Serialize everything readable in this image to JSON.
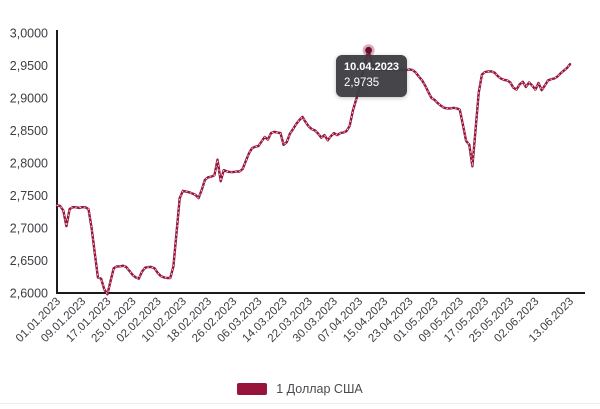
{
  "chart": {
    "tooltip": {
      "date": "10.04.2023",
      "value": "2,9735"
    },
    "legend": {
      "label": "1 Доллар США"
    },
    "colors": {
      "line": "#97143a",
      "line_dot_overlay": "#ffffff",
      "axis": "#1b1b1b",
      "tick_text": "#3d3d44",
      "tooltip_bg": "#3b3b40",
      "tooltip_text": "#ffffff",
      "marker_core": "#66102a",
      "marker_halo": "rgba(151,20,58,0.35)"
    }
  },
  "chart_data": {
    "type": "line",
    "title": "",
    "xlabel": "",
    "ylabel": "",
    "grid": false,
    "legend_position": "bottom",
    "ylim": [
      2.6,
      3.0
    ],
    "x_range_days": [
      0,
      163
    ],
    "y_ticks": [
      {
        "label": "3,0000",
        "value": 3.0
      },
      {
        "label": "2,9500",
        "value": 2.95
      },
      {
        "label": "2,9000",
        "value": 2.9
      },
      {
        "label": "2,8500",
        "value": 2.85
      },
      {
        "label": "2,8000",
        "value": 2.8
      },
      {
        "label": "2,7500",
        "value": 2.75
      },
      {
        "label": "2,7000",
        "value": 2.7
      },
      {
        "label": "2,6500",
        "value": 2.65
      },
      {
        "label": "2,6000",
        "value": 2.6
      }
    ],
    "x_ticks": [
      {
        "label": "01.01.2023",
        "day": 0
      },
      {
        "label": "09.01.2023",
        "day": 8
      },
      {
        "label": "17.01.2023",
        "day": 16
      },
      {
        "label": "25.01.2023",
        "day": 24
      },
      {
        "label": "02.02.2023",
        "day": 32
      },
      {
        "label": "10.02.2023",
        "day": 40
      },
      {
        "label": "18.02.2023",
        "day": 48
      },
      {
        "label": "26.02.2023",
        "day": 56
      },
      {
        "label": "06.03.2023",
        "day": 64
      },
      {
        "label": "14.03.2023",
        "day": 72
      },
      {
        "label": "22.03.2023",
        "day": 80
      },
      {
        "label": "30.03.2023",
        "day": 88
      },
      {
        "label": "07.04.2023",
        "day": 96
      },
      {
        "label": "15.04.2023",
        "day": 104
      },
      {
        "label": "23.04.2023",
        "day": 112
      },
      {
        "label": "01.05.2023",
        "day": 120
      },
      {
        "label": "09.05.2023",
        "day": 128
      },
      {
        "label": "17.05.2023",
        "day": 136
      },
      {
        "label": "25.05.2023",
        "day": 144
      },
      {
        "label": "02.06.2023",
        "day": 152
      },
      {
        "label": "13.06.2023",
        "day": 163
      }
    ],
    "marker": {
      "day": 99,
      "value": 2.9735,
      "date": "10.04.2023",
      "display_value": "2,9735"
    },
    "series": [
      {
        "name": "1 Доллар США",
        "points": [
          [
            0,
            2.735
          ],
          [
            1,
            2.734
          ],
          [
            2,
            2.727
          ],
          [
            3,
            2.703
          ],
          [
            4,
            2.729
          ],
          [
            5,
            2.732
          ],
          [
            6,
            2.732
          ],
          [
            7,
            2.731
          ],
          [
            8,
            2.732
          ],
          [
            9,
            2.732
          ],
          [
            10,
            2.729
          ],
          [
            11,
            2.7
          ],
          [
            12,
            2.661
          ],
          [
            13,
            2.624
          ],
          [
            14,
            2.622
          ],
          [
            15,
            2.606
          ],
          [
            16,
            2.598
          ],
          [
            17,
            2.618
          ],
          [
            18,
            2.638
          ],
          [
            19,
            2.641
          ],
          [
            20,
            2.641
          ],
          [
            21,
            2.642
          ],
          [
            22,
            2.64
          ],
          [
            23,
            2.634
          ],
          [
            24,
            2.628
          ],
          [
            25,
            2.624
          ],
          [
            26,
            2.622
          ],
          [
            27,
            2.633
          ],
          [
            28,
            2.639
          ],
          [
            29,
            2.64
          ],
          [
            30,
            2.64
          ],
          [
            31,
            2.638
          ],
          [
            32,
            2.631
          ],
          [
            33,
            2.626
          ],
          [
            34,
            2.624
          ],
          [
            35,
            2.623
          ],
          [
            36,
            2.623
          ],
          [
            37,
            2.641
          ],
          [
            38,
            2.694
          ],
          [
            39,
            2.746
          ],
          [
            40,
            2.757
          ],
          [
            41,
            2.756
          ],
          [
            42,
            2.755
          ],
          [
            43,
            2.753
          ],
          [
            44,
            2.751
          ],
          [
            45,
            2.746
          ],
          [
            46,
            2.759
          ],
          [
            47,
            2.774
          ],
          [
            48,
            2.778
          ],
          [
            49,
            2.779
          ],
          [
            50,
            2.781
          ],
          [
            51,
            2.805
          ],
          [
            52,
            2.772
          ],
          [
            53,
            2.789
          ],
          [
            54,
            2.787
          ],
          [
            55,
            2.786
          ],
          [
            56,
            2.786
          ],
          [
            57,
            2.787
          ],
          [
            58,
            2.787
          ],
          [
            59,
            2.791
          ],
          [
            60,
            2.803
          ],
          [
            61,
            2.815
          ],
          [
            62,
            2.823
          ],
          [
            63,
            2.825
          ],
          [
            64,
            2.826
          ],
          [
            65,
            2.833
          ],
          [
            66,
            2.84
          ],
          [
            67,
            2.836
          ],
          [
            68,
            2.846
          ],
          [
            69,
            2.848
          ],
          [
            70,
            2.847
          ],
          [
            71,
            2.846
          ],
          [
            72,
            2.828
          ],
          [
            73,
            2.832
          ],
          [
            74,
            2.845
          ],
          [
            75,
            2.852
          ],
          [
            76,
            2.86
          ],
          [
            77,
            2.866
          ],
          [
            78,
            2.871
          ],
          [
            79,
            2.863
          ],
          [
            80,
            2.856
          ],
          [
            81,
            2.852
          ],
          [
            82,
            2.85
          ],
          [
            83,
            2.845
          ],
          [
            84,
            2.839
          ],
          [
            85,
            2.843
          ],
          [
            86,
            2.835
          ],
          [
            87,
            2.841
          ],
          [
            88,
            2.846
          ],
          [
            89,
            2.843
          ],
          [
            90,
            2.846
          ],
          [
            91,
            2.847
          ],
          [
            92,
            2.849
          ],
          [
            93,
            2.857
          ],
          [
            94,
            2.88
          ],
          [
            95,
            2.897
          ],
          [
            96,
            2.912
          ],
          [
            97,
            2.937
          ],
          [
            98,
            2.957
          ],
          [
            99,
            2.9735
          ],
          [
            100,
            2.952
          ],
          [
            101,
            2.945
          ],
          [
            102,
            2.943
          ],
          [
            103,
            2.943
          ],
          [
            104,
            2.944
          ],
          [
            105,
            2.943
          ],
          [
            106,
            2.944
          ],
          [
            107,
            2.943
          ],
          [
            108,
            2.943
          ],
          [
            109,
            2.944
          ],
          [
            110,
            2.943
          ],
          [
            111,
            2.943
          ],
          [
            112,
            2.944
          ],
          [
            113,
            2.943
          ],
          [
            114,
            2.939
          ],
          [
            115,
            2.933
          ],
          [
            116,
            2.927
          ],
          [
            117,
            2.919
          ],
          [
            118,
            2.909
          ],
          [
            119,
            2.9
          ],
          [
            120,
            2.897
          ],
          [
            121,
            2.892
          ],
          [
            122,
            2.888
          ],
          [
            123,
            2.885
          ],
          [
            124,
            2.884
          ],
          [
            125,
            2.884
          ],
          [
            126,
            2.885
          ],
          [
            127,
            2.884
          ],
          [
            128,
            2.882
          ],
          [
            129,
            2.858
          ],
          [
            130,
            2.834
          ],
          [
            131,
            2.828
          ],
          [
            132,
            2.795
          ],
          [
            133,
            2.852
          ],
          [
            134,
            2.908
          ],
          [
            135,
            2.936
          ],
          [
            136,
            2.94
          ],
          [
            137,
            2.941
          ],
          [
            138,
            2.941
          ],
          [
            139,
            2.939
          ],
          [
            140,
            2.934
          ],
          [
            141,
            2.93
          ],
          [
            142,
            2.928
          ],
          [
            143,
            2.927
          ],
          [
            144,
            2.924
          ],
          [
            145,
            2.916
          ],
          [
            146,
            2.913
          ],
          [
            147,
            2.921
          ],
          [
            148,
            2.925
          ],
          [
            149,
            2.917
          ],
          [
            150,
            2.924
          ],
          [
            151,
            2.919
          ],
          [
            152,
            2.913
          ],
          [
            153,
            2.923
          ],
          [
            154,
            2.912
          ],
          [
            155,
            2.919
          ],
          [
            156,
            2.927
          ],
          [
            157,
            2.929
          ],
          [
            158,
            2.93
          ],
          [
            159,
            2.933
          ],
          [
            160,
            2.938
          ],
          [
            161,
            2.942
          ],
          [
            162,
            2.946
          ],
          [
            163,
            2.952
          ]
        ]
      }
    ]
  }
}
